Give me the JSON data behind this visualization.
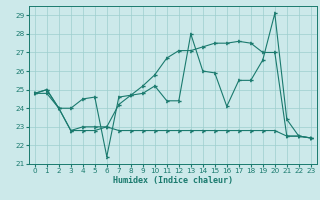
{
  "xlabel": "Humidex (Indice chaleur)",
  "xlim": [
    -0.5,
    23.5
  ],
  "ylim": [
    21,
    29.5
  ],
  "yticks": [
    21,
    22,
    23,
    24,
    25,
    26,
    27,
    28,
    29
  ],
  "xticks": [
    0,
    1,
    2,
    3,
    4,
    5,
    6,
    7,
    8,
    9,
    10,
    11,
    12,
    13,
    14,
    15,
    16,
    17,
    18,
    19,
    20,
    21,
    22,
    23
  ],
  "background_color": "#cce9ea",
  "grid_color": "#9dcece",
  "line_color": "#1a7a6e",
  "line1_x": [
    0,
    1,
    2,
    3,
    4,
    5,
    6,
    7,
    8,
    9,
    10,
    11,
    12,
    13,
    14,
    15,
    16,
    17,
    18,
    19,
    20,
    21,
    22,
    23
  ],
  "line1_y": [
    24.8,
    25.0,
    24.0,
    22.8,
    22.8,
    22.8,
    23.0,
    22.8,
    22.8,
    22.8,
    22.8,
    22.8,
    22.8,
    22.8,
    22.8,
    22.8,
    22.8,
    22.8,
    22.8,
    22.8,
    22.8,
    22.5,
    22.5,
    22.4
  ],
  "line2_x": [
    0,
    1,
    2,
    3,
    4,
    5,
    6,
    7,
    8,
    9,
    10,
    11,
    12,
    13,
    14,
    15,
    16,
    17,
    18,
    19,
    20,
    21,
    22,
    23
  ],
  "line2_y": [
    24.8,
    25.0,
    24.0,
    24.0,
    24.5,
    24.6,
    21.4,
    24.6,
    24.7,
    24.8,
    25.2,
    24.4,
    24.4,
    28.0,
    26.0,
    25.9,
    24.1,
    25.5,
    25.5,
    26.6,
    29.1,
    23.4,
    22.5,
    22.4
  ],
  "line3_x": [
    0,
    1,
    2,
    3,
    4,
    5,
    6,
    7,
    8,
    9,
    10,
    11,
    12,
    13,
    14,
    15,
    16,
    17,
    18,
    19,
    20,
    21,
    22,
    23
  ],
  "line3_y": [
    24.8,
    24.8,
    24.0,
    22.8,
    23.0,
    23.0,
    23.0,
    24.2,
    24.7,
    25.2,
    25.8,
    26.7,
    27.1,
    27.1,
    27.3,
    27.5,
    27.5,
    27.6,
    27.5,
    27.0,
    27.0,
    22.5,
    22.5,
    22.4
  ]
}
